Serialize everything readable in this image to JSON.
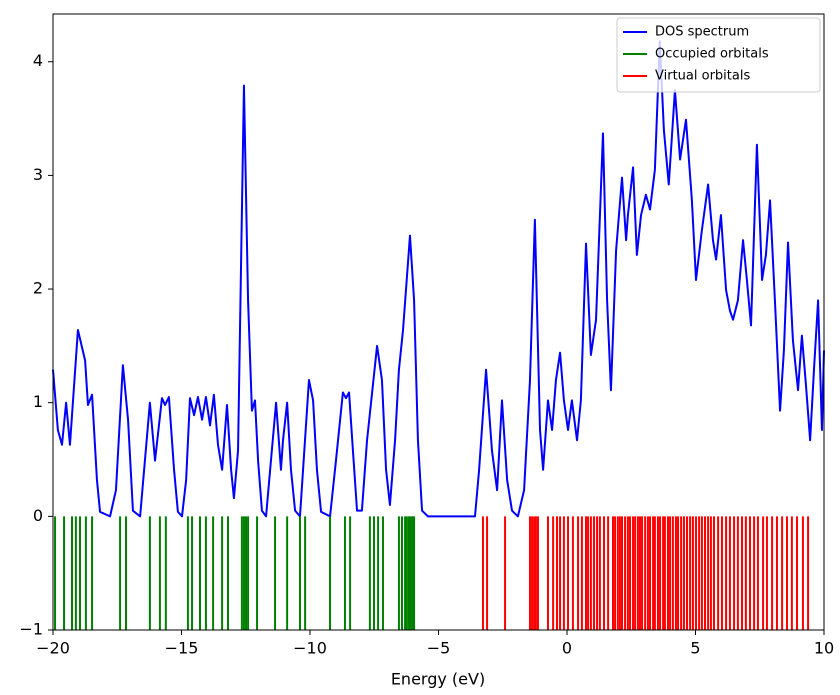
{
  "chart_data": {
    "type": "line",
    "xlabel": "Energy (eV)",
    "xlim": [
      -20,
      10
    ],
    "ylim": [
      -1,
      4.42
    ],
    "xticks": [
      {
        "value": -20,
        "label": "−20"
      },
      {
        "value": -15,
        "label": "−15"
      },
      {
        "value": -10,
        "label": "−10"
      },
      {
        "value": -5,
        "label": "−5"
      },
      0,
      5,
      10
    ],
    "yticks": [
      {
        "value": -1,
        "label": "−1"
      },
      0,
      1,
      2,
      3,
      4
    ],
    "legend": "upper right",
    "series": [
      {
        "name": "DOS spectrum",
        "color": "#0000ff",
        "x": [
          -20,
          -19.81,
          -19.65,
          -19.49,
          -19.34,
          -19.03,
          -18.75,
          -18.64,
          -18.48,
          -18.29,
          -18.17,
          -17.78,
          -17.55,
          -17.28,
          -17.08,
          -16.89,
          -16.61,
          -16.23,
          -16.03,
          -15.76,
          -15.64,
          -15.49,
          -15.29,
          -15.14,
          -14.98,
          -14.82,
          -14.67,
          -14.51,
          -14.36,
          -14.2,
          -14.05,
          -13.89,
          -13.74,
          -13.58,
          -13.42,
          -13.23,
          -13.07,
          -12.96,
          -12.8,
          -12.57,
          -12.41,
          -12.26,
          -12.14,
          -12.02,
          -11.87,
          -11.71,
          -11.52,
          -11.32,
          -11.13,
          -11.05,
          -10.89,
          -10.74,
          -10.58,
          -10.39,
          -10.27,
          -10.04,
          -9.88,
          -9.73,
          -9.57,
          -9.22,
          -8.99,
          -8.72,
          -8.6,
          -8.48,
          -8.33,
          -8.17,
          -7.98,
          -7.78,
          -7.39,
          -7.2,
          -7.04,
          -6.89,
          -6.69,
          -6.54,
          -6.38,
          -6.11,
          -5.95,
          -5.8,
          -5.64,
          -5.41,
          -3.58,
          -3.42,
          -3.15,
          -2.92,
          -2.72,
          -2.53,
          -2.33,
          -2.14,
          -1.91,
          -1.67,
          -1.44,
          -1.25,
          -1.05,
          -0.93,
          -0.74,
          -0.58,
          -0.43,
          -0.27,
          -0.12,
          0.04,
          0.19,
          0.39,
          0.54,
          0.74,
          0.93,
          1.13,
          1.4,
          1.56,
          1.71,
          1.91,
          2.14,
          2.3,
          2.37,
          2.57,
          2.72,
          2.88,
          3.07,
          3.23,
          3.42,
          3.61,
          3.77,
          3.96,
          4.2,
          4.4,
          4.63,
          4.86,
          5.02,
          5.25,
          5.49,
          5.68,
          5.8,
          5.99,
          6.19,
          6.34,
          6.46,
          6.65,
          6.85,
          7.0,
          7.16,
          7.39,
          7.59,
          7.74,
          7.9,
          8.09,
          8.29,
          8.44,
          8.6,
          8.79,
          8.99,
          9.14,
          9.3,
          9.46,
          9.61,
          9.77,
          9.92,
          10
        ],
        "values": [
          1.29,
          0.76,
          0.63,
          1.0,
          0.63,
          1.64,
          1.37,
          0.98,
          1.07,
          0.32,
          0.04,
          0,
          0.23,
          1.33,
          0.85,
          0.05,
          0,
          1.0,
          0.49,
          1.04,
          0.98,
          1.05,
          0.41,
          0.04,
          0,
          0.32,
          1.04,
          0.89,
          1.05,
          0.85,
          1.05,
          0.8,
          1.07,
          0.63,
          0.41,
          0.98,
          0.41,
          0.16,
          0.58,
          3.79,
          1.9,
          0.93,
          1.02,
          0.49,
          0.05,
          0,
          0.49,
          1.0,
          0.41,
          0.67,
          1.0,
          0.41,
          0.05,
          0,
          0.41,
          1.2,
          1.02,
          0.41,
          0.04,
          0,
          0.49,
          1.09,
          1.04,
          1.09,
          0.58,
          0.05,
          0.05,
          0.67,
          1.5,
          1.2,
          0.41,
          0.1,
          0.67,
          1.29,
          1.64,
          2.47,
          1.9,
          0.67,
          0.05,
          0,
          0,
          0.41,
          1.29,
          0.58,
          0.23,
          1.02,
          0.32,
          0.05,
          0,
          0.23,
          1.2,
          2.61,
          0.76,
          0.41,
          1.02,
          0.76,
          1.2,
          1.44,
          1.02,
          0.76,
          1.02,
          0.67,
          1.02,
          2.4,
          1.42,
          1.73,
          3.37,
          1.9,
          1.11,
          2.34,
          2.98,
          2.43,
          2.65,
          3.07,
          2.3,
          2.65,
          2.83,
          2.7,
          3.05,
          4.18,
          3.4,
          2.92,
          3.75,
          3.14,
          3.49,
          2.78,
          2.08,
          2.52,
          2.92,
          2.43,
          2.26,
          2.65,
          1.99,
          1.81,
          1.73,
          1.9,
          2.43,
          2.08,
          1.68,
          3.27,
          2.08,
          2.3,
          2.78,
          1.9,
          0.93,
          1.46,
          2.41,
          1.55,
          1.11,
          1.59,
          1.15,
          0.67,
          1.29,
          1.9,
          0.76,
          1.46
        ]
      },
      {
        "name": "Occupied orbitals",
        "color": "#008000",
        "x": [
          -19.92,
          -19.57,
          -19.26,
          -19.11,
          -18.95,
          -18.72,
          -18.48,
          -17.39,
          -17.16,
          -16.23,
          -15.84,
          -15.61,
          -14.75,
          -14.59,
          -14.28,
          -14.05,
          -13.77,
          -13.42,
          -13.19,
          -12.65,
          -12.57,
          -12.49,
          -12.41,
          -12.06,
          -11.36,
          -10.89,
          -10.39,
          -10.19,
          -9.22,
          -8.64,
          -8.44,
          -7.67,
          -7.51,
          -7.35,
          -7.16,
          -6.54,
          -6.42,
          -6.3,
          -6.23,
          -6.15,
          -6.11,
          -6.03,
          -5.99,
          -5.95
        ]
      },
      {
        "name": "Virtual orbitals",
        "color": "#ff0000",
        "x": [
          -3.27,
          -3.11,
          -2.41,
          -1.44,
          -1.36,
          -1.28,
          -1.21,
          -1.13,
          -0.74,
          -0.54,
          -0.39,
          -0.27,
          -0.12,
          0.04,
          0.23,
          0.43,
          0.58,
          0.74,
          0.82,
          0.93,
          1.05,
          1.17,
          1.28,
          1.44,
          1.6,
          1.79,
          1.87,
          1.98,
          2.06,
          2.14,
          2.26,
          2.37,
          2.45,
          2.57,
          2.65,
          2.76,
          2.84,
          2.92,
          3.04,
          3.15,
          3.23,
          3.35,
          3.42,
          3.54,
          3.62,
          3.74,
          3.81,
          3.93,
          4.01,
          4.12,
          4.24,
          4.32,
          4.44,
          4.55,
          4.67,
          4.79,
          4.9,
          5.02,
          5.14,
          5.25,
          5.37,
          5.49,
          5.6,
          5.72,
          5.88,
          6.03,
          6.19,
          6.34,
          6.5,
          6.65,
          6.81,
          6.96,
          7.12,
          7.28,
          7.43,
          7.63,
          7.78,
          7.98,
          8.17,
          8.37,
          8.56,
          8.75,
          8.95,
          9.18,
          9.38
        ]
      }
    ]
  }
}
